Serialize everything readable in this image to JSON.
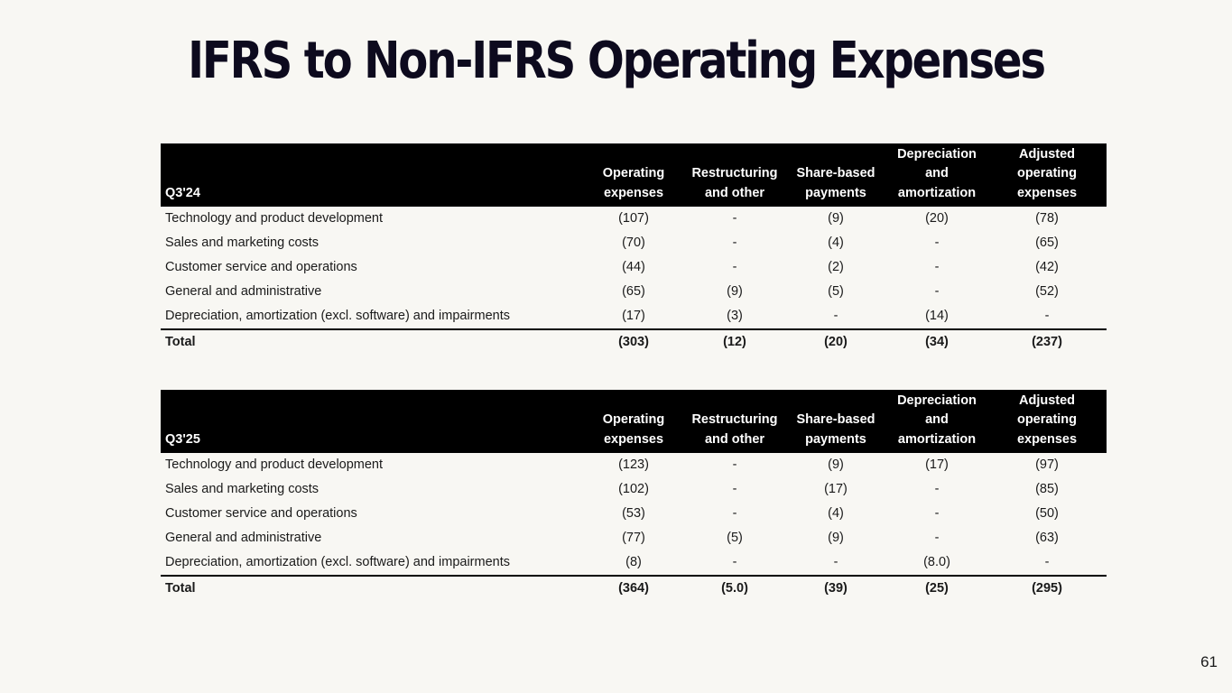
{
  "title": "IFRS to Non-IFRS Operating Expenses",
  "page_number": "61",
  "columns": {
    "operating_expenses": [
      "Operating",
      "expenses"
    ],
    "restructuring": [
      "Restructuring",
      "and other"
    ],
    "share_based": [
      "Share-based",
      "payments"
    ],
    "depreciation": [
      "Depreciation",
      "and",
      "amortization"
    ],
    "adjusted": [
      "Adjusted",
      "operating",
      "expenses"
    ]
  },
  "tables": [
    {
      "period": "Q3'24",
      "rows": [
        {
          "label": "Technology and product development",
          "values": [
            "(107)",
            "-",
            "(9)",
            "(20)",
            "(78)"
          ]
        },
        {
          "label": "Sales and marketing costs",
          "values": [
            "(70)",
            "-",
            "(4)",
            "-",
            "(65)"
          ]
        },
        {
          "label": "Customer service and operations",
          "values": [
            "(44)",
            "-",
            "(2)",
            "-",
            "(42)"
          ]
        },
        {
          "label": "General and administrative",
          "values": [
            "(65)",
            "(9)",
            "(5)",
            "-",
            "(52)"
          ]
        },
        {
          "label": "Depreciation, amortization (excl. software) and impairments",
          "values": [
            "(17)",
            "(3)",
            "-",
            "(14)",
            "-"
          ]
        }
      ],
      "total": {
        "label": "Total",
        "values": [
          "(303)",
          "(12)",
          "(20)",
          "(34)",
          "(237)"
        ]
      }
    },
    {
      "period": "Q3'25",
      "rows": [
        {
          "label": "Technology and product development",
          "values": [
            "(123)",
            "-",
            "(9)",
            "(17)",
            "(97)"
          ]
        },
        {
          "label": "Sales and marketing costs",
          "values": [
            "(102)",
            "-",
            "(17)",
            "-",
            "(85)"
          ]
        },
        {
          "label": "Customer service and operations",
          "values": [
            "(53)",
            "-",
            "(4)",
            "-",
            "(50)"
          ]
        },
        {
          "label": "General and administrative",
          "values": [
            "(77)",
            "(5)",
            "(9)",
            "-",
            "(63)"
          ]
        },
        {
          "label": "Depreciation, amortization (excl. software) and impairments",
          "values": [
            "(8)",
            "-",
            "-",
            "(8.0)",
            "-"
          ]
        }
      ],
      "total": {
        "label": "Total",
        "values": [
          "(364)",
          "(5.0)",
          "(39)",
          "(25)",
          "(295)"
        ]
      }
    }
  ]
}
